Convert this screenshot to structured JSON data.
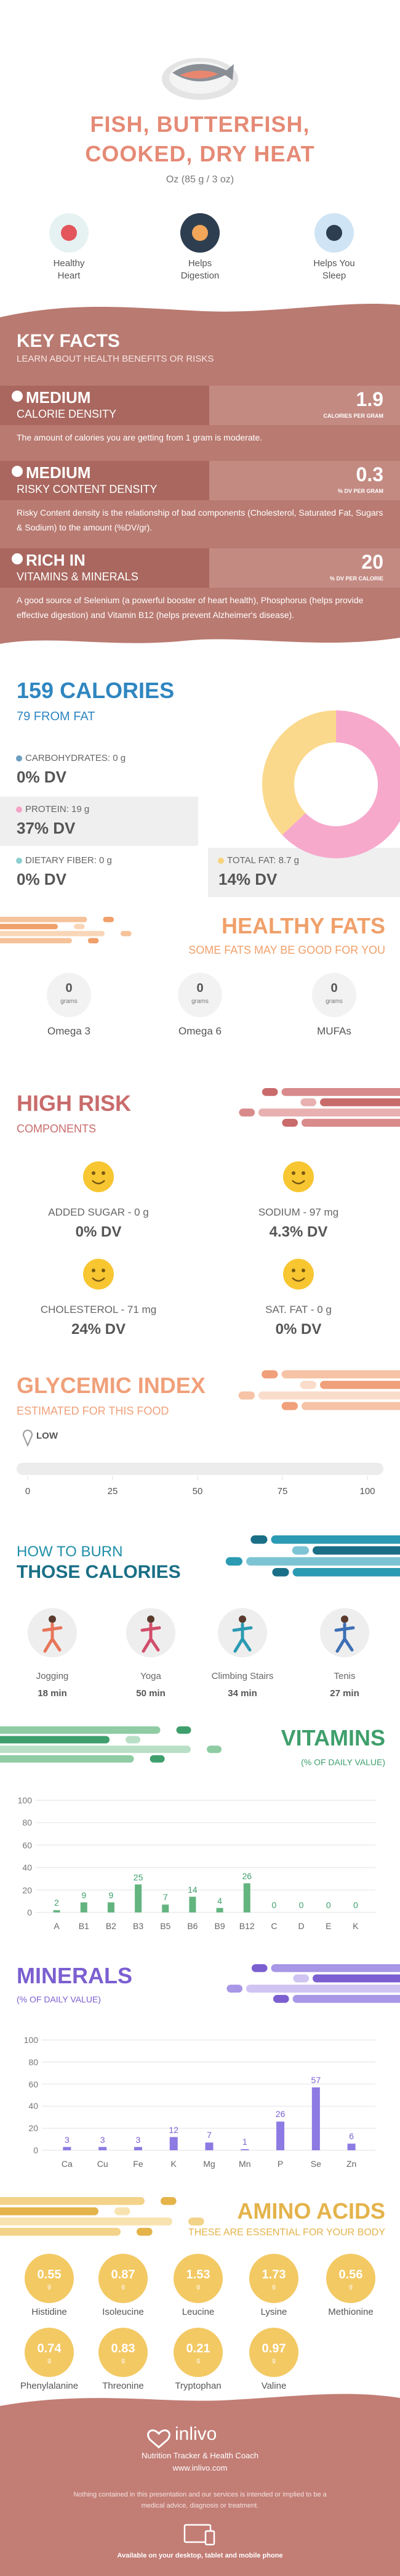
{
  "header": {
    "title": "FISH, BUTTERFISH, COOKED, DRY HEAT",
    "serving": "Oz (85 g / 3 oz)",
    "benefits": [
      "Healthy Heart",
      "Helps Digestion",
      "Helps You Sleep"
    ]
  },
  "key_facts": {
    "title": "KEY FACTS",
    "subtitle": "LEARN ABOUT HEALTH BENEFITS OR RISKS",
    "facts": [
      {
        "level": "MEDIUM",
        "name": "CALORIE DENSITY",
        "value": 1.9,
        "unit": "CALORIES PER GRAM",
        "text": "The amount of calories you are getting from 1 gram is moderate."
      },
      {
        "level": "MEDIUM",
        "name": "RISKY CONTENT DENSITY",
        "value": 0.3,
        "unit": "% DV PER GRAM",
        "text": "Risky Content density is the relationship of bad components (Cholesterol, Saturated Fat, Sugars & Sodium) to the amount (%DV/gr)."
      },
      {
        "level": "RICH IN",
        "name": "VITAMINS & MINERALS",
        "value": 20,
        "unit": "% DV PER CALORIE",
        "text": "A good source of Selenium (a powerful booster of heart health), Phosphorus (helps provide effective digestion) and Vitamin B12 (helps prevent Alzheimer's disease)."
      }
    ]
  },
  "calories": {
    "title": "159 CALORIES",
    "subtitle": "79 FROM FAT",
    "nutrients": [
      {
        "label": "CARBOHYDRATES: 0 g",
        "dv": "0% DV",
        "color": "#6b9fc0"
      },
      {
        "label": "PROTEIN: 19 g",
        "dv": "37% DV",
        "color": "#f4a3c6"
      },
      {
        "label": "DIETARY FIBER: 0 g",
        "dv": "0% DV",
        "color": "#8ccfcf"
      },
      {
        "label": "TOTAL FAT: 8.7 g",
        "dv": "14% DV",
        "color": "#f8d27c"
      }
    ]
  },
  "healthy_fats": {
    "title": "HEALTHY FATS",
    "subtitle": "SOME FATS MAY BE GOOD FOR YOU",
    "items": [
      {
        "name": "Omega 3",
        "value": 0,
        "unit": "grams"
      },
      {
        "name": "Omega 6",
        "value": 0,
        "unit": "grams"
      },
      {
        "name": "MUFAs",
        "value": 0,
        "unit": "grams"
      }
    ]
  },
  "high_risk": {
    "title": "HIGH RISK",
    "subtitle": "COMPONENTS",
    "items": [
      {
        "label": "ADDED SUGAR - 0 g",
        "dv": "0% DV"
      },
      {
        "label": "SODIUM - 97 mg",
        "dv": "4.3% DV"
      },
      {
        "label": "CHOLESTEROL - 71 mg",
        "dv": "24% DV"
      },
      {
        "label": "SAT. FAT - 0 g",
        "dv": "0% DV"
      }
    ]
  },
  "burn": {
    "title": "HOW TO BURN",
    "subtitle": "THOSE CALORIES",
    "activities": [
      {
        "name": "Jogging",
        "time": "18 min"
      },
      {
        "name": "Yoga",
        "time": "50 min"
      },
      {
        "name": "Climbing Stairs",
        "time": "34 min"
      },
      {
        "name": "Tenis",
        "time": "27 min"
      }
    ]
  },
  "chart_data": [
    {
      "type": "bar",
      "title": "VITAMINS",
      "subtitle": "(% OF DAILY VALUE)",
      "categories": [
        "A",
        "B1",
        "B2",
        "B3",
        "B5",
        "B6",
        "B9",
        "B12",
        "C",
        "D",
        "E",
        "K"
      ],
      "values": [
        2,
        9,
        9,
        25,
        7,
        14,
        4,
        26,
        0,
        0,
        0,
        0
      ],
      "color": "#63b47f",
      "ylim": [
        0,
        100
      ],
      "yticks": [
        0,
        20,
        40,
        60,
        80,
        100
      ],
      "grid": true
    },
    {
      "type": "bar",
      "title": "MINERALS",
      "subtitle": "(% OF DAILY VALUE)",
      "categories": [
        "Ca",
        "Cu",
        "Fe",
        "K",
        "Mg",
        "Mn",
        "P",
        "Se",
        "Zn"
      ],
      "values": [
        3,
        3,
        3,
        12,
        7,
        1,
        26,
        57,
        6
      ],
      "color": "#8d7ae2",
      "ylim": [
        0,
        100
      ],
      "yticks": [
        0,
        20,
        40,
        60,
        80,
        100
      ],
      "grid": true
    },
    {
      "type": "donut",
      "values": [
        63,
        37
      ],
      "colors": [
        "#f7a9cb",
        "#fbd98c"
      ]
    },
    {
      "type": "gauge",
      "title": "GLYCEMIC INDEX",
      "subtitle": "ESTIMATED FOR THIS FOOD",
      "value": 0,
      "rating": "LOW",
      "xlim": [
        0,
        100
      ],
      "xticks": [
        0,
        25,
        50,
        75,
        100
      ]
    }
  ],
  "amino_acids": {
    "title": "AMINO ACIDS",
    "subtitle": "THESE ARE ESSENTIAL FOR YOUR BODY",
    "items": [
      {
        "name": "Histidine",
        "value": 0.55,
        "unit": "g"
      },
      {
        "name": "Isoleucine",
        "value": 0.87,
        "unit": "g"
      },
      {
        "name": "Leucine",
        "value": 1.53,
        "unit": "g"
      },
      {
        "name": "Lysine",
        "value": 1.73,
        "unit": "g"
      },
      {
        "name": "Methionine",
        "value": 0.56,
        "unit": "g"
      },
      {
        "name": "Phenylalanine",
        "value": 0.74,
        "unit": "g"
      },
      {
        "name": "Threonine",
        "value": 0.83,
        "unit": "g"
      },
      {
        "name": "Tryptophan",
        "value": 0.21,
        "unit": "g"
      },
      {
        "name": "Valine",
        "value": 0.97,
        "unit": "g"
      }
    ]
  },
  "footer": {
    "brand": "inlivo",
    "tagline": "Nutrition Tracker & Health Coach",
    "url": "www.inlivo.com",
    "disclaimer": "Nothing contained in this presentation and our services is intended or implied to be a medical advice, diagnosis or treatment.",
    "availability": "Available on your desktop, tablet and mobile phone"
  }
}
